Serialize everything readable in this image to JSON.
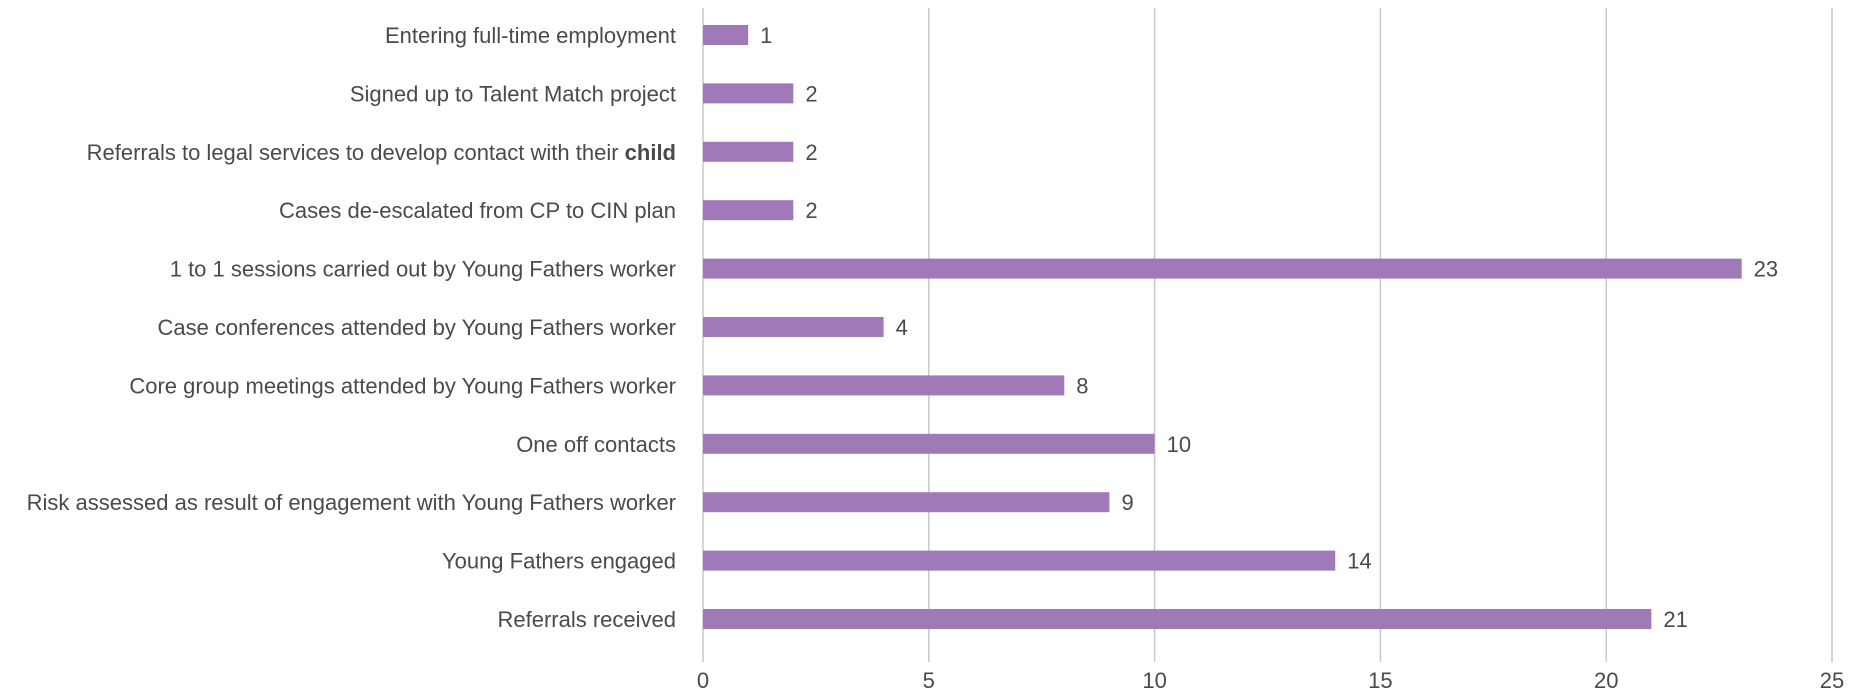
{
  "chart_data": {
    "type": "bar",
    "orientation": "horizontal",
    "title": "",
    "xlabel": "",
    "ylabel": "",
    "categories": [
      "Entering full-time employment",
      "Signed up to Talent Match project",
      "Referrals to legal services to develop contact with their child",
      "Cases de-escalated from CP to CIN plan",
      "1 to 1 sessions carried out by Young Fathers worker",
      "Case conferences attended by Young Fathers worker",
      "Core group meetings attended by Young Fathers worker",
      "One off contacts",
      "Risk assessed as result of engagement with Young Fathers worker",
      "Young Fathers engaged",
      "Referrals received"
    ],
    "category_label_parts": [
      [
        {
          "text": "Entering full-time employment"
        }
      ],
      [
        {
          "text": "Signed up to Talent Match project"
        }
      ],
      [
        {
          "text": "Referrals to legal services to develop contact with their "
        },
        {
          "text": "child",
          "bold": true
        }
      ],
      [
        {
          "text": "Cases de-escalated from CP to CIN plan"
        }
      ],
      [
        {
          "text": "1 to 1 sessions carried out by Young Fathers worker"
        }
      ],
      [
        {
          "text": "Case conferences attended by Young Fathers worker"
        }
      ],
      [
        {
          "text": "Core group meetings attended by Young Fathers worker"
        }
      ],
      [
        {
          "text": "One off contacts"
        }
      ],
      [
        {
          "text": "Risk assessed as result of engagement with Young Fathers worker"
        }
      ],
      [
        {
          "text": "Young Fathers engaged"
        }
      ],
      [
        {
          "text": "Referrals received"
        }
      ]
    ],
    "values": [
      1,
      2,
      2,
      2,
      23,
      4,
      8,
      10,
      9,
      14,
      21
    ],
    "value_labels": [
      "1",
      "2",
      "2",
      "2",
      "23",
      "4",
      "8",
      "10",
      "9",
      "14",
      "21"
    ],
    "xlim": [
      0,
      25
    ],
    "xticks": [
      0,
      5,
      10,
      15,
      20,
      25
    ],
    "xtick_labels": [
      "0",
      "5",
      "10",
      "15",
      "20",
      "25"
    ],
    "grid": "vertical",
    "legend": "none",
    "bar_color": "#a07ab8",
    "grid_color": "#c8c8c8",
    "text_color": "#4a4a4a"
  }
}
